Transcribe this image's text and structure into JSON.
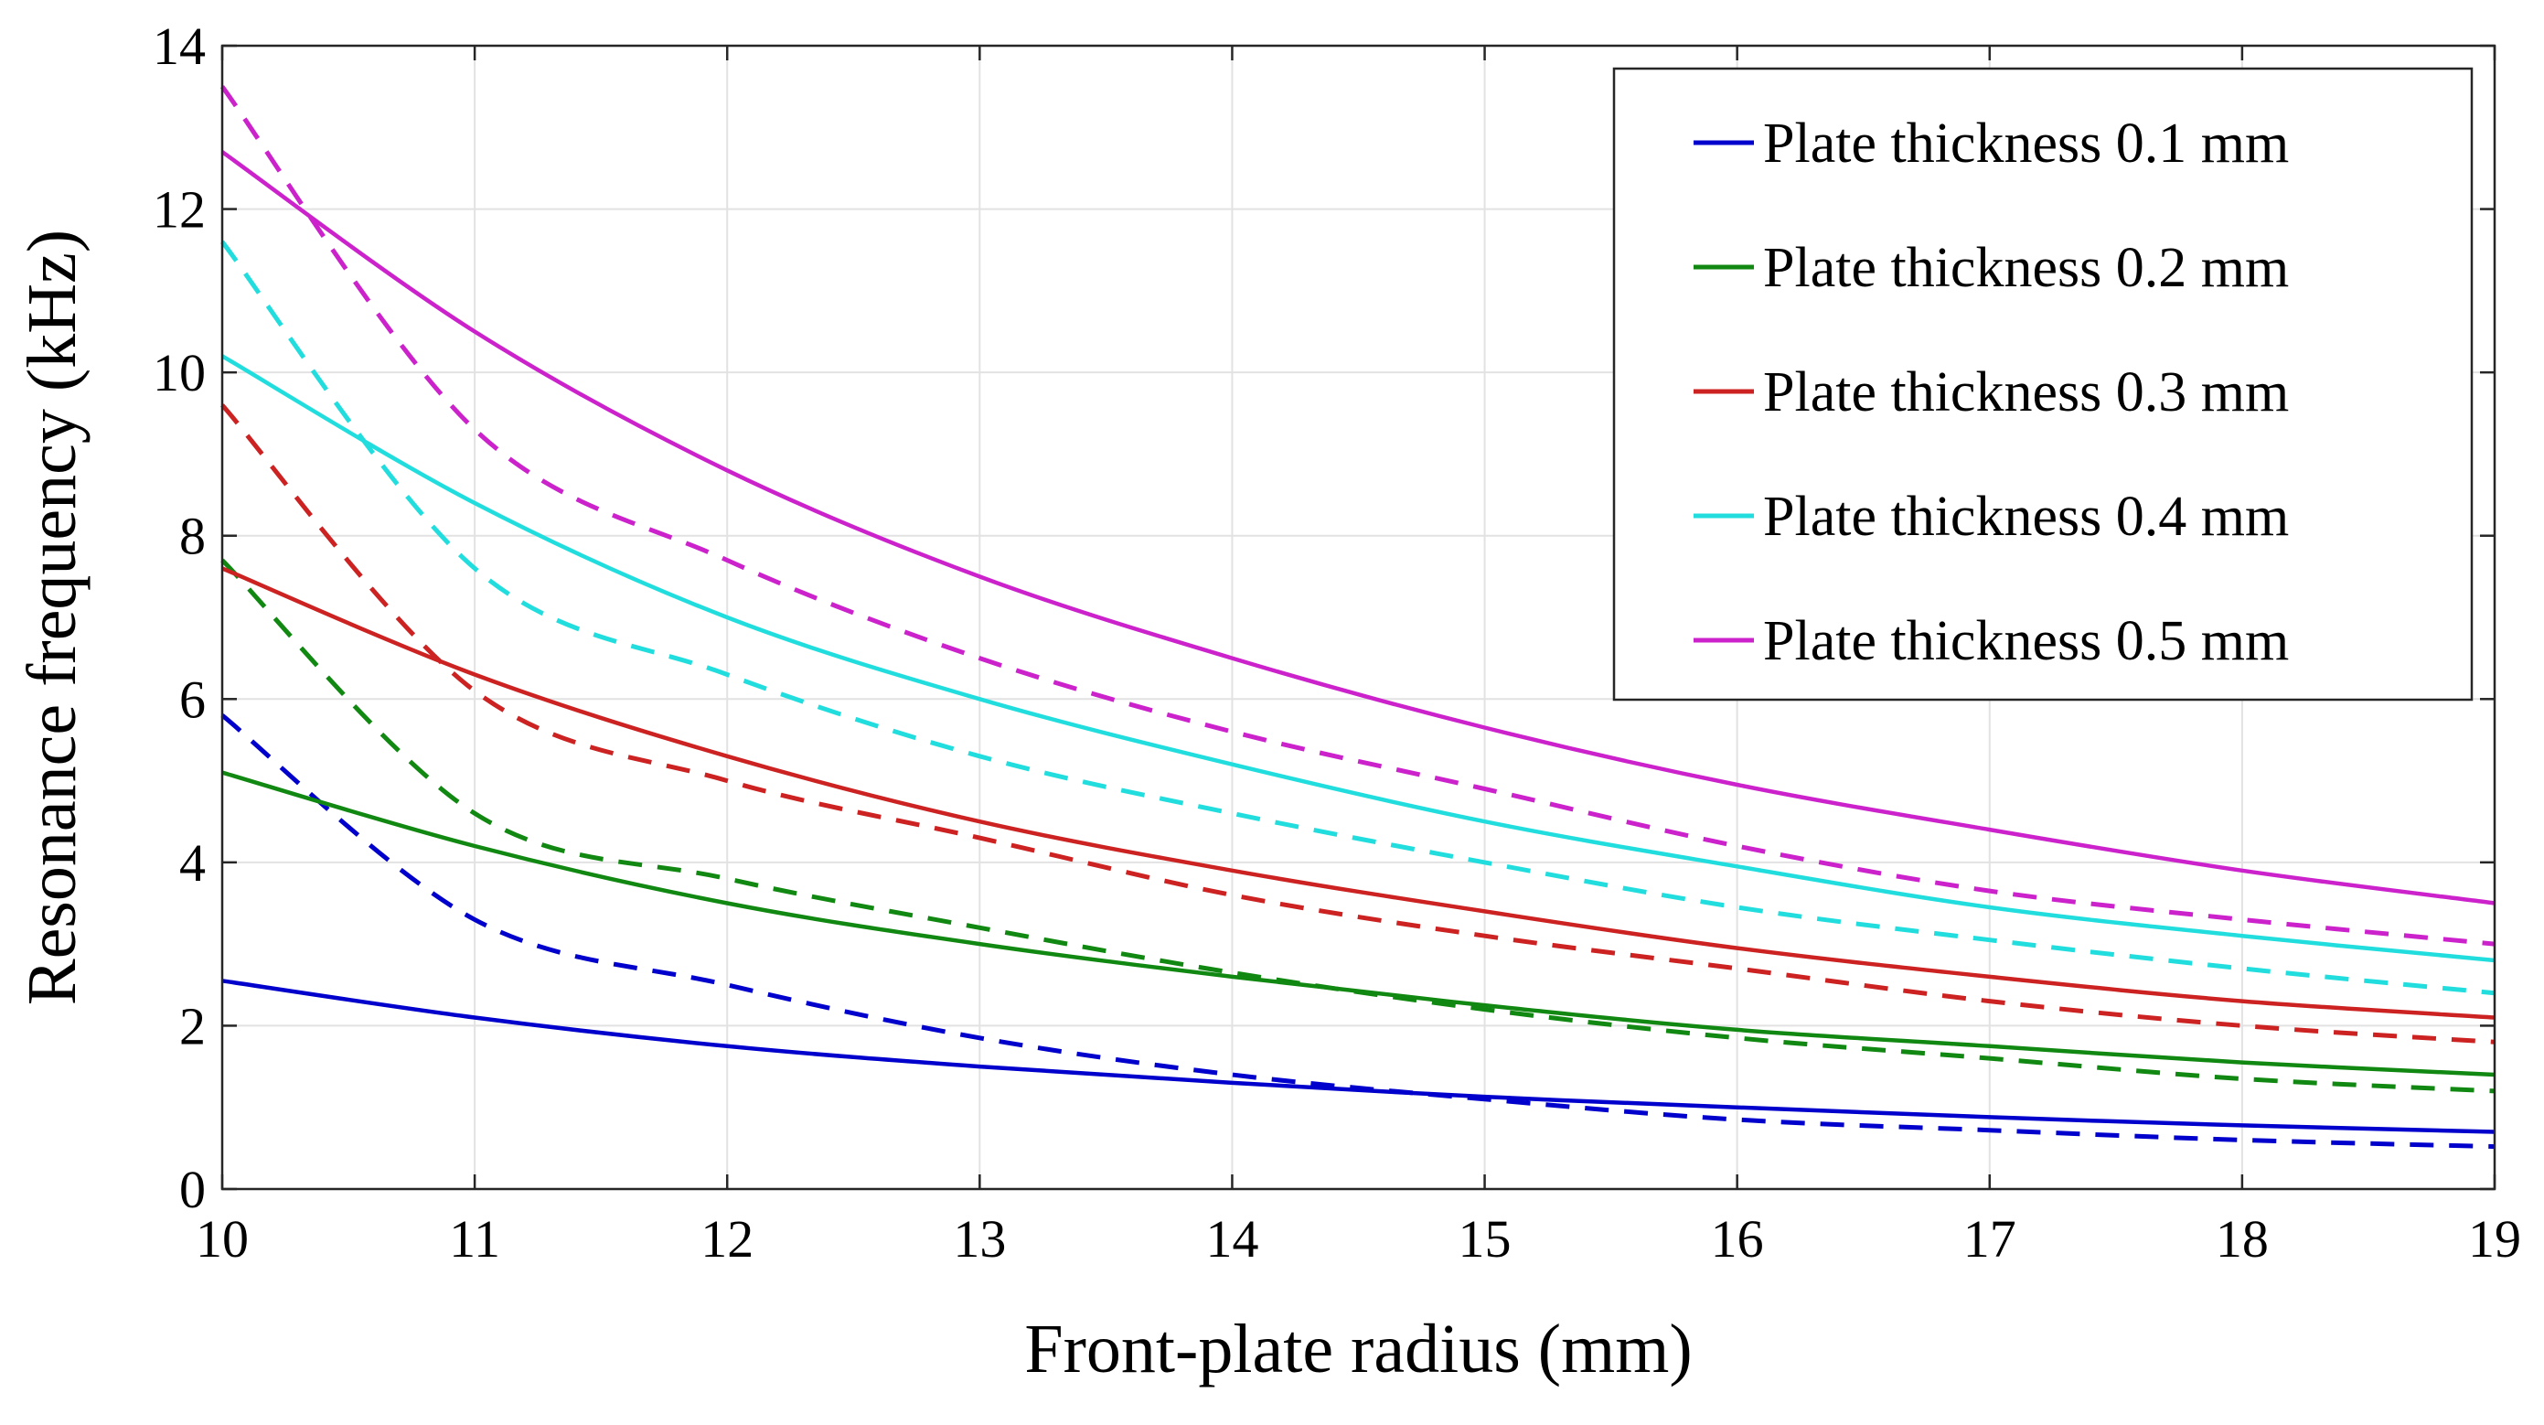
{
  "chart_data": {
    "type": "line",
    "title": "",
    "xlabel": "Front-plate radius (mm)",
    "ylabel": "Resonance frequency (kHz)",
    "xlim": [
      10,
      19
    ],
    "ylim": [
      0,
      14
    ],
    "xticks": [
      10,
      11,
      12,
      13,
      14,
      15,
      16,
      17,
      18,
      19
    ],
    "yticks": [
      0,
      2,
      4,
      6,
      8,
      10,
      12,
      14
    ],
    "grid": true,
    "legend_position": "top-right",
    "x": [
      10,
      11,
      12,
      13,
      14,
      15,
      16,
      17,
      18,
      19
    ],
    "series": [
      {
        "name": "Plate thickness 0.1 mm",
        "color": "#0000cc",
        "solid": [
          2.55,
          2.1,
          1.75,
          1.5,
          1.3,
          1.13,
          1.0,
          0.88,
          0.78,
          0.7
        ],
        "dashed": [
          5.8,
          3.3,
          2.5,
          1.85,
          1.4,
          1.1,
          0.85,
          0.72,
          0.6,
          0.52
        ]
      },
      {
        "name": "Plate thickness 0.2 mm",
        "color": "#118811",
        "solid": [
          5.1,
          4.2,
          3.5,
          3.0,
          2.6,
          2.25,
          1.95,
          1.75,
          1.55,
          1.4
        ],
        "dashed": [
          7.7,
          4.6,
          3.8,
          3.2,
          2.65,
          2.2,
          1.85,
          1.6,
          1.35,
          1.2
        ]
      },
      {
        "name": "Plate thickness 0.3 mm",
        "color": "#cc2222",
        "solid": [
          7.6,
          6.3,
          5.3,
          4.5,
          3.9,
          3.4,
          2.95,
          2.6,
          2.3,
          2.1
        ],
        "dashed": [
          9.6,
          6.1,
          5.0,
          4.3,
          3.6,
          3.1,
          2.7,
          2.3,
          2.0,
          1.8
        ]
      },
      {
        "name": "Plate thickness 0.4 mm",
        "color": "#22dddd",
        "solid": [
          10.2,
          8.4,
          7.0,
          6.0,
          5.2,
          4.5,
          3.95,
          3.45,
          3.1,
          2.8
        ],
        "dashed": [
          11.6,
          7.6,
          6.3,
          5.3,
          4.6,
          4.0,
          3.45,
          3.05,
          2.7,
          2.4
        ]
      },
      {
        "name": "Plate thickness 0.5 mm",
        "color": "#cc22cc",
        "solid": [
          12.7,
          10.5,
          8.8,
          7.5,
          6.5,
          5.65,
          4.95,
          4.4,
          3.9,
          3.5
        ],
        "dashed": [
          13.5,
          9.3,
          7.7,
          6.5,
          5.6,
          4.9,
          4.2,
          3.65,
          3.3,
          3.0
        ]
      }
    ]
  }
}
